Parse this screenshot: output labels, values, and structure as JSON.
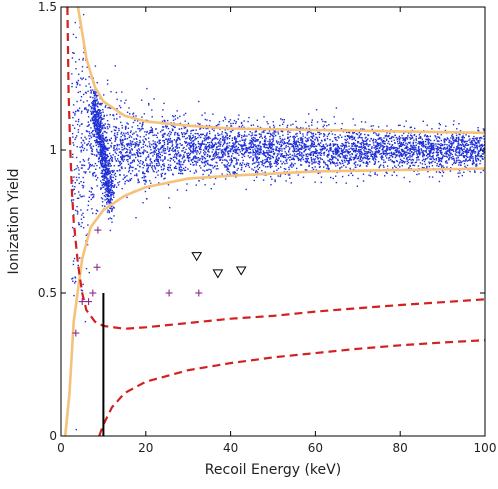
{
  "chart_data": {
    "type": "scatter",
    "title": "",
    "xlabel": "Recoil Energy (keV)",
    "ylabel": "Ionization Yield",
    "xlim": [
      0,
      100
    ],
    "ylim": [
      0,
      1.5
    ],
    "x_ticks": [
      0,
      20,
      40,
      60,
      80,
      100
    ],
    "y_ticks": [
      0,
      0.5,
      1,
      1.5
    ],
    "x_tick_labels": [
      "0",
      "20",
      "40",
      "60",
      "80",
      "100"
    ],
    "y_tick_labels": [
      "0",
      "0.5",
      "1",
      "1.5"
    ],
    "grid": false,
    "legend": "none",
    "colors": {
      "dense_scatter": "#1f2fd6",
      "band_curves": "#f5c27a",
      "dashed_curves": "#d42020",
      "cross_markers": "#8b2a8b",
      "triangle_markers": "#000000",
      "threshold_line": "#000000"
    },
    "series": [
      {
        "kind": "scatter-band",
        "description_center": 1.0,
        "approx_points": 4500,
        "x_range": [
          2,
          100
        ],
        "envelope_upper": [
          [
            4,
            1.5
          ],
          [
            6,
            1.32
          ],
          [
            8,
            1.22
          ],
          [
            10,
            1.17
          ],
          [
            15,
            1.12
          ],
          [
            20,
            1.1
          ],
          [
            30,
            1.085
          ],
          [
            40,
            1.075
          ],
          [
            60,
            1.07
          ],
          [
            80,
            1.065
          ],
          [
            100,
            1.06
          ]
        ],
        "envelope_lower": [
          [
            1,
            0.0
          ],
          [
            2,
            0.15
          ],
          [
            3,
            0.4
          ],
          [
            5,
            0.62
          ],
          [
            7,
            0.73
          ],
          [
            10,
            0.79
          ],
          [
            15,
            0.84
          ],
          [
            20,
            0.87
          ],
          [
            30,
            0.9
          ],
          [
            40,
            0.91
          ],
          [
            60,
            0.925
          ],
          [
            80,
            0.93
          ],
          [
            100,
            0.935
          ]
        ]
      },
      {
        "kind": "dashed-curve-left",
        "points": [
          [
            1.5,
            1.5
          ],
          [
            1.8,
            1.2
          ],
          [
            2.2,
            1.0
          ],
          [
            2.6,
            0.85
          ],
          [
            3.0,
            0.75
          ],
          [
            4.0,
            0.6
          ],
          [
            5.0,
            0.5
          ],
          [
            6.0,
            0.44
          ],
          [
            8.0,
            0.4
          ],
          [
            10.0,
            0.385
          ],
          [
            15.0,
            0.375
          ],
          [
            20.0,
            0.38
          ]
        ]
      },
      {
        "kind": "dashed-curve-upper",
        "points": [
          [
            20,
            0.38
          ],
          [
            30,
            0.395
          ],
          [
            40,
            0.41
          ],
          [
            50,
            0.42
          ],
          [
            60,
            0.435
          ],
          [
            70,
            0.447
          ],
          [
            80,
            0.458
          ],
          [
            90,
            0.468
          ],
          [
            100,
            0.478
          ]
        ]
      },
      {
        "kind": "dashed-curve-lower",
        "points": [
          [
            9,
            0.0
          ],
          [
            10,
            0.04
          ],
          [
            12,
            0.1
          ],
          [
            15,
            0.15
          ],
          [
            20,
            0.19
          ],
          [
            30,
            0.23
          ],
          [
            40,
            0.255
          ],
          [
            50,
            0.275
          ],
          [
            60,
            0.29
          ],
          [
            70,
            0.305
          ],
          [
            80,
            0.317
          ],
          [
            90,
            0.327
          ],
          [
            100,
            0.335
          ]
        ]
      },
      {
        "kind": "threshold-line",
        "x": 10,
        "y_range": [
          0,
          0.5
        ]
      },
      {
        "kind": "cross-markers",
        "points": [
          [
            3.5,
            0.36
          ],
          [
            5.0,
            0.47
          ],
          [
            6.5,
            0.47
          ],
          [
            7.5,
            0.5
          ],
          [
            8.5,
            0.59
          ],
          [
            8.7,
            0.72
          ],
          [
            25.5,
            0.5
          ],
          [
            32.5,
            0.5
          ]
        ]
      },
      {
        "kind": "triangle-markers",
        "points": [
          [
            32,
            0.63
          ],
          [
            37,
            0.57
          ],
          [
            42.5,
            0.58
          ]
        ]
      }
    ]
  }
}
